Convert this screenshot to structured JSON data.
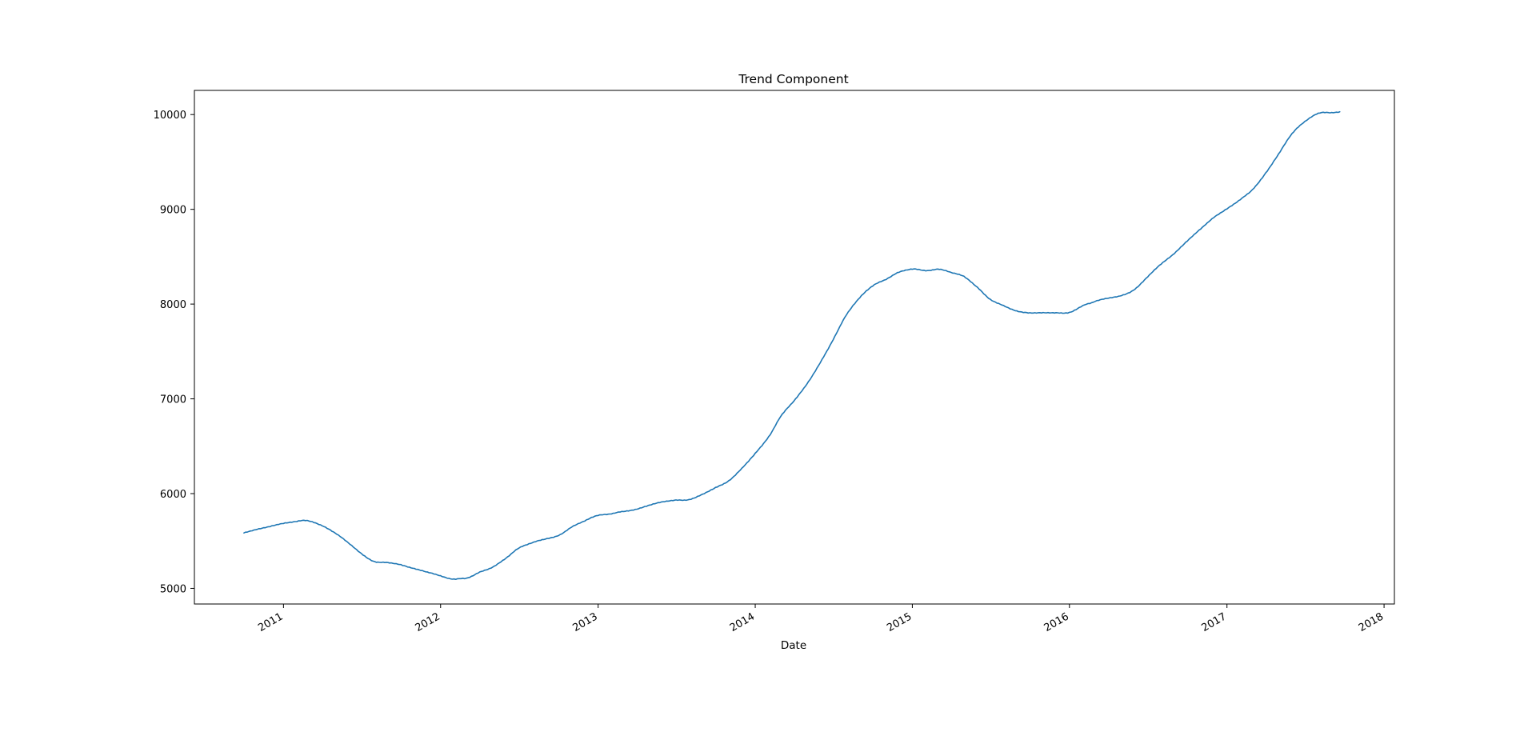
{
  "chart_data": {
    "type": "line",
    "title": "Trend Component",
    "xlabel": "Date",
    "ylabel": "",
    "x_ticks": [
      "2011",
      "2012",
      "2013",
      "2014",
      "2015",
      "2016",
      "2017",
      "2018"
    ],
    "y_ticks": [
      5000,
      6000,
      7000,
      8000,
      9000,
      10000
    ],
    "xlim": [
      "2010-06-08",
      "2018-01-25"
    ],
    "ylim": [
      4835,
      10255
    ],
    "grid": false,
    "legend": "none",
    "series": [
      {
        "color": "#1f77b4",
        "x": [
          "2010-10-01",
          "2010-11-01",
          "2010-12-01",
          "2011-01-01",
          "2011-02-01",
          "2011-03-01",
          "2011-04-01",
          "2011-05-01",
          "2011-06-01",
          "2011-07-01",
          "2011-08-01",
          "2011-09-01",
          "2011-10-01",
          "2011-11-01",
          "2011-12-01",
          "2012-01-01",
          "2012-02-01",
          "2012-03-01",
          "2012-04-01",
          "2012-05-01",
          "2012-06-01",
          "2012-07-01",
          "2012-08-01",
          "2012-09-01",
          "2012-10-01",
          "2012-11-01",
          "2012-12-01",
          "2013-01-01",
          "2013-02-01",
          "2013-03-01",
          "2013-04-01",
          "2013-05-01",
          "2013-06-01",
          "2013-07-01",
          "2013-08-01",
          "2013-09-01",
          "2013-10-01",
          "2013-11-01",
          "2013-12-01",
          "2014-01-01",
          "2014-02-01",
          "2014-03-01",
          "2014-04-01",
          "2014-05-01",
          "2014-06-01",
          "2014-07-01",
          "2014-08-01",
          "2014-09-01",
          "2014-10-01",
          "2014-11-01",
          "2014-12-01",
          "2015-01-01",
          "2015-02-01",
          "2015-03-01",
          "2015-04-01",
          "2015-05-01",
          "2015-06-01",
          "2015-07-01",
          "2015-08-01",
          "2015-09-01",
          "2015-10-01",
          "2015-11-01",
          "2015-12-01",
          "2016-01-01",
          "2016-02-01",
          "2016-03-01",
          "2016-04-01",
          "2016-05-01",
          "2016-06-01",
          "2016-07-01",
          "2016-08-01",
          "2016-09-01",
          "2016-10-01",
          "2016-11-01",
          "2016-12-01",
          "2017-01-01",
          "2017-02-01",
          "2017-03-01",
          "2017-04-01",
          "2017-05-01",
          "2017-06-01",
          "2017-07-01",
          "2017-08-01",
          "2017-09-01",
          "2017-09-20"
        ],
        "values": [
          5590,
          5620,
          5650,
          5690,
          5705,
          5715,
          5660,
          5580,
          5480,
          5370,
          5280,
          5270,
          5250,
          5210,
          5170,
          5130,
          5100,
          5110,
          5170,
          5220,
          5320,
          5430,
          5480,
          5520,
          5560,
          5650,
          5710,
          5770,
          5790,
          5810,
          5840,
          5880,
          5910,
          5930,
          5940,
          5990,
          6060,
          6140,
          6270,
          6420,
          6600,
          6810,
          6980,
          7160,
          7380,
          7620,
          7890,
          8070,
          8190,
          8260,
          8340,
          8370,
          8350,
          8370,
          8330,
          8290,
          8180,
          8050,
          7980,
          7930,
          7910,
          7905,
          7905,
          7915,
          7980,
          8030,
          8060,
          8090,
          8160,
          8290,
          8420,
          8540,
          8670,
          8790,
          8910,
          9010,
          9100,
          9210,
          9380,
          9580,
          9800,
          9930,
          10010,
          10020,
          10030
        ]
      }
    ]
  }
}
